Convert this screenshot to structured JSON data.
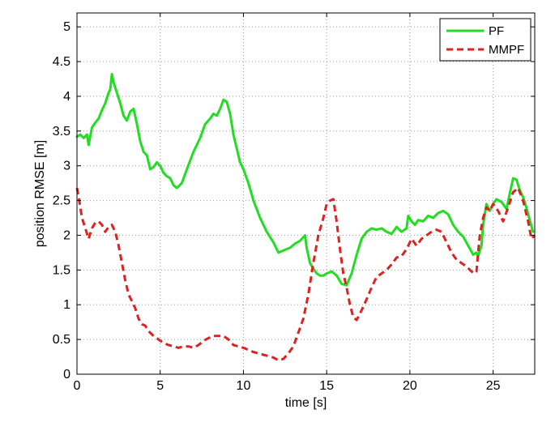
{
  "chart_data": {
    "type": "line",
    "title": "",
    "xlabel": "time [s]",
    "ylabel": "position RMSE [m]",
    "xlim": [
      0,
      27.5
    ],
    "ylim": [
      0,
      5.2
    ],
    "x_ticks": [
      0,
      5,
      10,
      15,
      20,
      25
    ],
    "x_tick_labels": [
      "0",
      "5",
      "10",
      "15",
      "20",
      "25"
    ],
    "y_ticks": [
      0,
      0.5,
      1,
      1.5,
      2,
      2.5,
      3,
      3.5,
      4,
      4.5,
      5
    ],
    "y_tick_labels": [
      "0",
      "0.5",
      "1",
      "1.5",
      "2",
      "2.5",
      "3",
      "3.5",
      "4",
      "4.5",
      "5"
    ],
    "grid": true,
    "legend_position": "top-right",
    "series": [
      {
        "name": "PF",
        "color": "#22dd22",
        "dash": "solid",
        "x": [
          0,
          0.2,
          0.4,
          0.6,
          0.7,
          0.9,
          1.1,
          1.3,
          1.5,
          1.7,
          1.9,
          2.0,
          2.1,
          2.2,
          2.4,
          2.6,
          2.8,
          3.0,
          3.2,
          3.4,
          3.6,
          3.8,
          4.0,
          4.2,
          4.4,
          4.6,
          4.8,
          5.0,
          5.2,
          5.4,
          5.6,
          5.8,
          6.0,
          6.3,
          6.6,
          7.0,
          7.4,
          7.7,
          8.0,
          8.2,
          8.4,
          8.6,
          8.8,
          9.0,
          9.2,
          9.4,
          9.6,
          9.8,
          10.0,
          10.3,
          10.6,
          11.0,
          11.4,
          11.8,
          12.1,
          12.4,
          12.8,
          13.1,
          13.4,
          13.7,
          13.8,
          14.0,
          14.2,
          14.4,
          14.6,
          14.8,
          15.0,
          15.3,
          15.6,
          15.9,
          16.2,
          16.5,
          16.8,
          17.1,
          17.4,
          17.7,
          18.0,
          18.3,
          18.6,
          18.9,
          19.2,
          19.5,
          19.8,
          19.9,
          20.1,
          20.3,
          20.5,
          20.8,
          21.1,
          21.4,
          21.7,
          22.0,
          22.3,
          22.6,
          22.9,
          23.2,
          23.5,
          23.8,
          24.0,
          24.1,
          24.3,
          24.4,
          24.6,
          24.8,
          25.0,
          25.2,
          25.5,
          25.8,
          26.0,
          26.2,
          26.4,
          26.6,
          26.8,
          27.0,
          27.2,
          27.4
        ],
        "y": [
          3.42,
          3.45,
          3.4,
          3.45,
          3.3,
          3.55,
          3.62,
          3.68,
          3.8,
          3.9,
          4.05,
          4.1,
          4.32,
          4.2,
          4.05,
          3.9,
          3.72,
          3.65,
          3.78,
          3.82,
          3.6,
          3.35,
          3.2,
          3.15,
          2.95,
          2.98,
          3.05,
          3.0,
          2.9,
          2.85,
          2.82,
          2.72,
          2.68,
          2.75,
          2.95,
          3.2,
          3.4,
          3.6,
          3.68,
          3.75,
          3.72,
          3.82,
          3.95,
          3.92,
          3.75,
          3.45,
          3.25,
          3.05,
          2.95,
          2.75,
          2.5,
          2.25,
          2.05,
          1.9,
          1.75,
          1.78,
          1.82,
          1.88,
          1.92,
          2.0,
          1.82,
          1.6,
          1.52,
          1.45,
          1.42,
          1.42,
          1.45,
          1.48,
          1.42,
          1.3,
          1.28,
          1.45,
          1.72,
          1.95,
          2.05,
          2.1,
          2.08,
          2.1,
          2.05,
          2.02,
          2.12,
          2.05,
          2.1,
          2.28,
          2.2,
          2.15,
          2.22,
          2.2,
          2.28,
          2.25,
          2.32,
          2.35,
          2.3,
          2.15,
          2.05,
          1.98,
          1.85,
          1.72,
          1.75,
          1.7,
          1.85,
          2.15,
          2.45,
          2.35,
          2.45,
          2.52,
          2.48,
          2.38,
          2.6,
          2.82,
          2.8,
          2.65,
          2.55,
          2.4,
          2.22,
          2.05
        ]
      },
      {
        "name": "MMPF",
        "color": "#dd2222",
        "dash": "dashed",
        "x": [
          0,
          0.1,
          0.3,
          0.5,
          0.7,
          0.9,
          1.1,
          1.3,
          1.5,
          1.7,
          1.9,
          2.1,
          2.3,
          2.5,
          2.7,
          2.9,
          3.1,
          3.3,
          3.5,
          3.7,
          3.9,
          4.1,
          4.3,
          4.6,
          4.9,
          5.2,
          5.5,
          5.8,
          6.1,
          6.4,
          6.7,
          7.0,
          7.3,
          7.6,
          7.9,
          8.2,
          8.5,
          8.8,
          9.1,
          9.4,
          9.7,
          10.0,
          10.3,
          10.6,
          10.9,
          11.2,
          11.5,
          11.8,
          12.1,
          12.4,
          12.7,
          13.0,
          13.3,
          13.6,
          13.9,
          14.2,
          14.5,
          14.8,
          15.0,
          15.2,
          15.4,
          15.6,
          15.8,
          16.0,
          16.2,
          16.4,
          16.6,
          16.8,
          17.1,
          17.4,
          17.7,
          18.0,
          18.3,
          18.6,
          18.9,
          19.2,
          19.5,
          19.8,
          20.1,
          20.4,
          20.7,
          21.0,
          21.3,
          21.6,
          21.9,
          22.2,
          22.5,
          22.8,
          23.1,
          23.4,
          23.7,
          23.9,
          24.0,
          24.1,
          24.2,
          24.4,
          24.6,
          24.8,
          25.0,
          25.3,
          25.6,
          25.9,
          26.2,
          26.5,
          26.8,
          27.1,
          27.3,
          27.5
        ],
        "y": [
          2.68,
          2.55,
          2.25,
          2.1,
          1.95,
          2.1,
          2.18,
          2.2,
          2.15,
          2.05,
          2.12,
          2.15,
          2.05,
          1.85,
          1.6,
          1.35,
          1.15,
          1.05,
          0.95,
          0.8,
          0.72,
          0.7,
          0.62,
          0.55,
          0.5,
          0.45,
          0.42,
          0.4,
          0.38,
          0.4,
          0.4,
          0.38,
          0.42,
          0.48,
          0.52,
          0.55,
          0.55,
          0.55,
          0.5,
          0.42,
          0.4,
          0.38,
          0.35,
          0.32,
          0.3,
          0.28,
          0.26,
          0.24,
          0.2,
          0.22,
          0.3,
          0.4,
          0.6,
          0.8,
          1.15,
          1.6,
          2.0,
          2.25,
          2.45,
          2.5,
          2.52,
          2.2,
          1.8,
          1.45,
          1.25,
          1.0,
          0.82,
          0.78,
          0.92,
          1.08,
          1.25,
          1.4,
          1.45,
          1.5,
          1.58,
          1.68,
          1.7,
          1.8,
          1.95,
          1.85,
          1.95,
          2.0,
          2.05,
          2.08,
          2.05,
          1.9,
          1.75,
          1.65,
          1.6,
          1.55,
          1.48,
          1.45,
          1.48,
          1.75,
          2.0,
          2.25,
          2.4,
          2.35,
          2.45,
          2.35,
          2.2,
          2.4,
          2.62,
          2.68,
          2.5,
          2.2,
          1.95,
          2.0
        ]
      }
    ]
  }
}
